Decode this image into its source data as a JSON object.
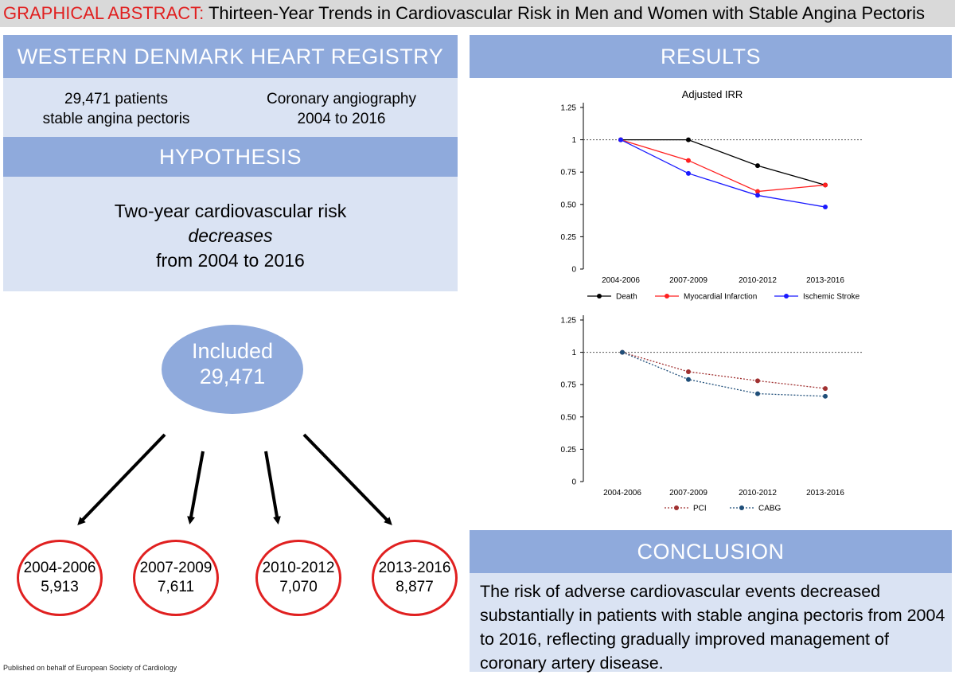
{
  "title": {
    "prefix": "GRAPHICAL ABSTRACT:",
    "text": "Thirteen-Year Trends in Cardiovascular Risk in Men and Women with Stable Angina Pectoris"
  },
  "registry": {
    "heading": "WESTERN DENMARK HEART REGISTRY",
    "left_line1": "29,471 patients",
    "left_line2": "stable angina pectoris",
    "right_line1": "Coronary angiography",
    "right_line2": "2004 to 2016"
  },
  "hypothesis": {
    "heading": "HYPOTHESIS",
    "line1": "Two-year cardiovascular risk",
    "line2": "decreases",
    "line3": "from 2004 to 2016"
  },
  "included": {
    "label": "Included",
    "count": "29,471"
  },
  "periods": [
    {
      "years": "2004-2006",
      "count": "5,913"
    },
    {
      "years": "2007-2009",
      "count": "7,611"
    },
    {
      "years": "2010-2012",
      "count": "7,070"
    },
    {
      "years": "2013-2016",
      "count": "8,877"
    }
  ],
  "results": {
    "heading": "RESULTS"
  },
  "conclusion": {
    "heading": "CONCLUSION",
    "text": "The risk of adverse cardiovascular events decreased substantially in patients with stable angina pectoris from 2004 to 2016, reflecting gradually improved management of coronary artery disease."
  },
  "footer": "Published on behalf of European Society of Cardiology",
  "chart_data": [
    {
      "type": "line",
      "title": "Adjusted IRR",
      "categories": [
        "2004-2006",
        "2007-2009",
        "2010-2012",
        "2013-2016"
      ],
      "yticks": [
        "0",
        "0.25",
        "0.50",
        "0.75",
        "1",
        "1.25"
      ],
      "ylim": [
        0,
        1.25
      ],
      "reference_line": 1,
      "legend_position": "bottom",
      "series": [
        {
          "name": "Death",
          "color": "#000000",
          "dashed": false,
          "values": [
            1.0,
            1.0,
            0.8,
            0.65
          ]
        },
        {
          "name": "Myocardial Infarction",
          "color": "#ff2020",
          "dashed": false,
          "values": [
            1.0,
            0.84,
            0.6,
            0.65
          ]
        },
        {
          "name": "Ischemic Stroke",
          "color": "#1a1aff",
          "dashed": false,
          "values": [
            1.0,
            0.74,
            0.57,
            0.48
          ]
        }
      ]
    },
    {
      "type": "line",
      "title": "",
      "categories": [
        "2004-2006",
        "2007-2009",
        "2010-2012",
        "2013-2016"
      ],
      "yticks": [
        "0",
        "0.25",
        "0.50",
        "0.75",
        "1",
        "1.25"
      ],
      "ylim": [
        0,
        1.25
      ],
      "reference_line": 1,
      "legend_position": "bottom",
      "series": [
        {
          "name": "PCI",
          "color": "#a03030",
          "dashed": true,
          "values": [
            1.0,
            0.85,
            0.78,
            0.72
          ]
        },
        {
          "name": "CABG",
          "color": "#1f4e79",
          "dashed": true,
          "values": [
            1.0,
            0.79,
            0.68,
            0.66
          ]
        }
      ]
    }
  ]
}
